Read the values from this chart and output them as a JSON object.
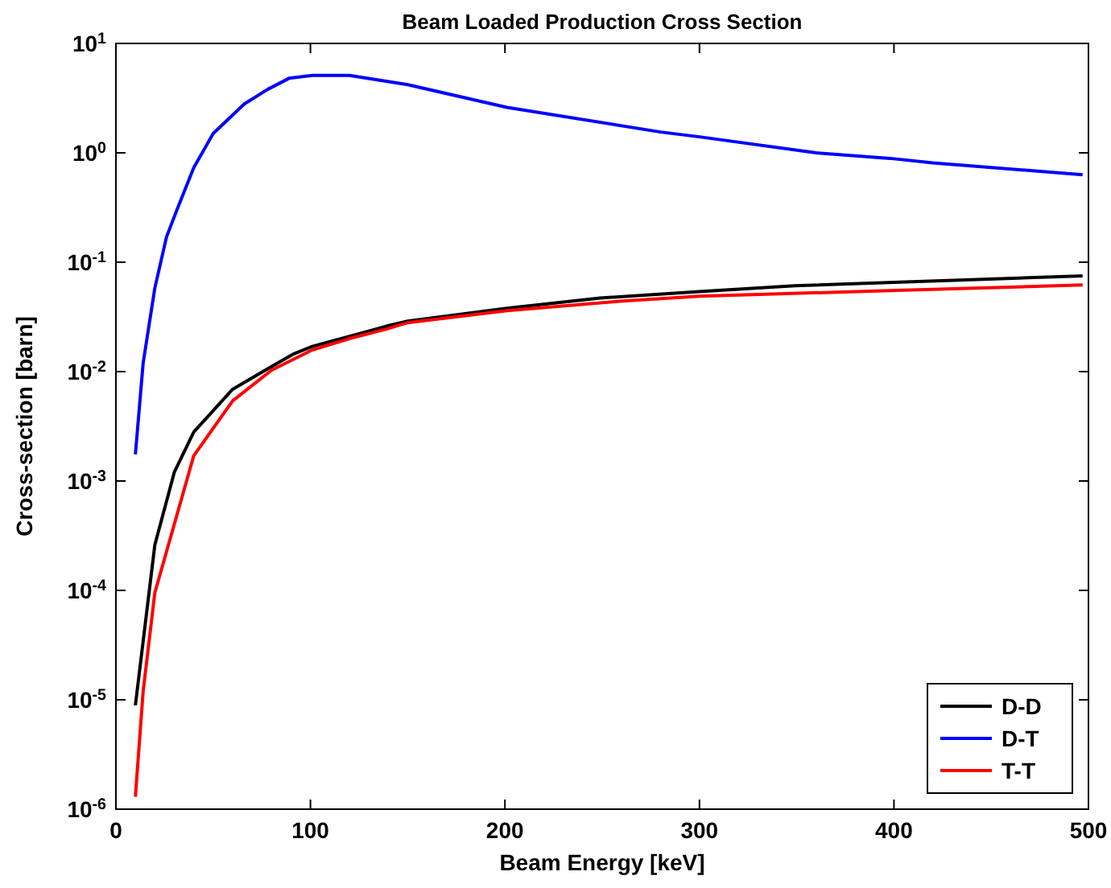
{
  "chart_data": {
    "type": "line",
    "title": "Beam Loaded Production Cross Section",
    "xlabel": "Beam Energy [keV]",
    "ylabel": "Cross-section [barn]",
    "log": "y",
    "legend": "bottom right",
    "grid": false,
    "xlim": [
      0,
      500
    ],
    "xticks": [
      0,
      100,
      200,
      300,
      400,
      500
    ],
    "ylim": [
      1e-06,
      10
    ],
    "yticks": [
      {
        "value": 1e-06,
        "label": "10$^{-6}$"
      },
      {
        "value": 1e-05,
        "label": "10$^{-5}$"
      },
      {
        "value": 0.0001,
        "label": "10$^{-4}$"
      },
      {
        "value": 0.001,
        "label": "10$^{-3}$"
      },
      {
        "value": 0.01,
        "label": "10$^{-2}$"
      },
      {
        "value": 0.1,
        "label": "10$^{-1}$"
      },
      {
        "value": 1,
        "label": "10$^{0}$"
      },
      {
        "value": 10,
        "label": "10$^{1}$"
      }
    ],
    "series": [
      {
        "name": "D-D",
        "color": "#000000",
        "x": [
          10,
          20,
          30,
          40,
          60,
          78,
          91,
          101,
          120,
          139,
          150,
          201,
          249,
          300,
          349,
          497
        ],
        "values": [
          8.9e-06,
          0.00026,
          0.0012,
          0.0028,
          0.0069,
          0.0106,
          0.0144,
          0.017,
          0.021,
          0.026,
          0.029,
          0.038,
          0.047,
          0.054,
          0.061,
          0.075
        ]
      },
      {
        "name": "D-T",
        "color": "#0000ff",
        "x": [
          10,
          14,
          20,
          26,
          31,
          40,
          50,
          66,
          78,
          89,
          101,
          120,
          150,
          201,
          280,
          300,
          360,
          398,
          420,
          497
        ],
        "values": [
          0.00175,
          0.012,
          0.058,
          0.17,
          0.29,
          0.73,
          1.5,
          2.8,
          3.8,
          4.8,
          5.1,
          5.1,
          4.2,
          2.6,
          1.55,
          1.4,
          1.0,
          0.89,
          0.81,
          0.63
        ]
      },
      {
        "name": "T-T",
        "color": "#ff0000",
        "x": [
          10,
          14,
          20,
          40,
          60,
          80,
          101,
          120,
          139,
          150,
          201,
          259,
          300,
          398,
          497
        ],
        "values": [
          1.3e-06,
          1.2e-05,
          9.5e-05,
          0.0017,
          0.0054,
          0.0103,
          0.0158,
          0.02,
          0.0245,
          0.028,
          0.036,
          0.044,
          0.049,
          0.055,
          0.062
        ]
      }
    ]
  }
}
